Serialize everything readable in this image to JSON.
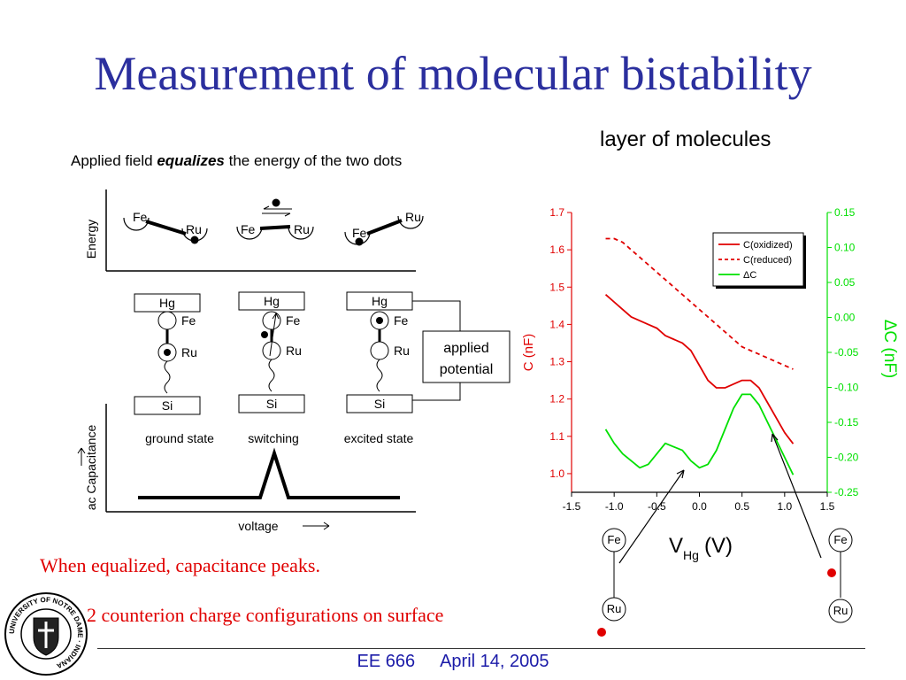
{
  "slide": {
    "title": "Measurement of molecular bistability",
    "subtitle_right": "layer of molecules",
    "applied_field": {
      "prefix": "Applied field ",
      "emphasis": "equalizes",
      "suffix": " the energy of the two dots"
    },
    "note_equalized": "When equalized, capacitance peaks.",
    "note_counterion": "2 counterion charge configurations on surface",
    "footer": {
      "course": "EE 666",
      "date": "April 14, 2005"
    },
    "seal_text": "UNIVERSITY OF NOTRE DAME · INDIANA"
  },
  "schematic": {
    "energy_label": "Energy",
    "dot_fe": "Fe",
    "dot_ru": "Ru",
    "electrode_top": "Hg",
    "electrode_bottom": "Si",
    "applied_potential": [
      "applied",
      "potential"
    ],
    "states": [
      "ground state",
      "switching",
      "excited state"
    ],
    "cap_ylabel": "ac Capacitance",
    "cap_xlabel": "voltage"
  },
  "chart_data": {
    "type": "line",
    "xlabel_main": "V",
    "xlabel_sub": "Hg",
    "xlabel_unit": "(V)",
    "ylabel_left": "C (nF)",
    "ylabel_right": "ΔC (nF)",
    "xlim": [
      -1.5,
      1.5
    ],
    "ylim_left": [
      0.95,
      1.7
    ],
    "ylim_right": [
      -0.25,
      0.15
    ],
    "x_ticks": [
      "-1.5",
      "-1.0",
      "-0.5",
      "0.0",
      "0.5",
      "1.0",
      "1.5"
    ],
    "y_left_ticks": [
      "1.0",
      "1.1",
      "1.2",
      "1.3",
      "1.4",
      "1.5",
      "1.6",
      "1.7"
    ],
    "y_right_ticks": [
      "0.15",
      "0.10",
      "0.05",
      "0.00",
      "-0.05",
      "-0.10",
      "-0.15",
      "-0.20",
      "-0.25"
    ],
    "legend_position": "top-right",
    "colors": {
      "left_axis": "#e00000",
      "right_axis": "#00e000"
    },
    "series": [
      {
        "name": "C(oxidized)",
        "axis": "left",
        "color": "#e00000",
        "dash": "solid",
        "x": [
          -1.1,
          -1.0,
          -0.9,
          -0.8,
          -0.7,
          -0.6,
          -0.5,
          -0.4,
          -0.3,
          -0.2,
          -0.1,
          0.0,
          0.1,
          0.2,
          0.3,
          0.4,
          0.5,
          0.6,
          0.7,
          0.8,
          0.9,
          1.0,
          1.1
        ],
        "y": [
          1.48,
          1.46,
          1.44,
          1.42,
          1.41,
          1.4,
          1.39,
          1.37,
          1.36,
          1.35,
          1.33,
          1.29,
          1.25,
          1.23,
          1.23,
          1.24,
          1.25,
          1.25,
          1.23,
          1.19,
          1.15,
          1.11,
          1.08
        ]
      },
      {
        "name": "C(reduced)",
        "axis": "left",
        "color": "#e00000",
        "dash": "dashed",
        "x": [
          -1.1,
          -1.0,
          -0.9,
          -0.8,
          -0.7,
          -0.6,
          -0.5,
          -0.4,
          -0.3,
          -0.2,
          -0.1,
          0.0,
          0.1,
          0.2,
          0.3,
          0.4,
          0.5,
          0.6,
          0.7,
          0.8,
          0.9,
          1.0,
          1.1
        ],
        "y": [
          1.63,
          1.63,
          1.62,
          1.6,
          1.58,
          1.56,
          1.54,
          1.52,
          1.5,
          1.48,
          1.46,
          1.44,
          1.42,
          1.4,
          1.38,
          1.36,
          1.34,
          1.33,
          1.32,
          1.31,
          1.3,
          1.29,
          1.28
        ]
      },
      {
        "name": "ΔC",
        "axis": "right",
        "color": "#00e000",
        "dash": "solid",
        "x": [
          -1.1,
          -1.0,
          -0.9,
          -0.8,
          -0.7,
          -0.6,
          -0.5,
          -0.4,
          -0.3,
          -0.2,
          -0.1,
          0.0,
          0.1,
          0.2,
          0.3,
          0.4,
          0.5,
          0.6,
          0.7,
          0.8,
          0.9,
          1.0,
          1.1
        ],
        "y": [
          -0.16,
          -0.18,
          -0.195,
          -0.205,
          -0.215,
          -0.21,
          -0.195,
          -0.18,
          -0.185,
          -0.19,
          -0.205,
          -0.215,
          -0.21,
          -0.19,
          -0.16,
          -0.13,
          -0.11,
          -0.11,
          -0.125,
          -0.15,
          -0.175,
          -0.2,
          -0.225
        ]
      }
    ]
  }
}
